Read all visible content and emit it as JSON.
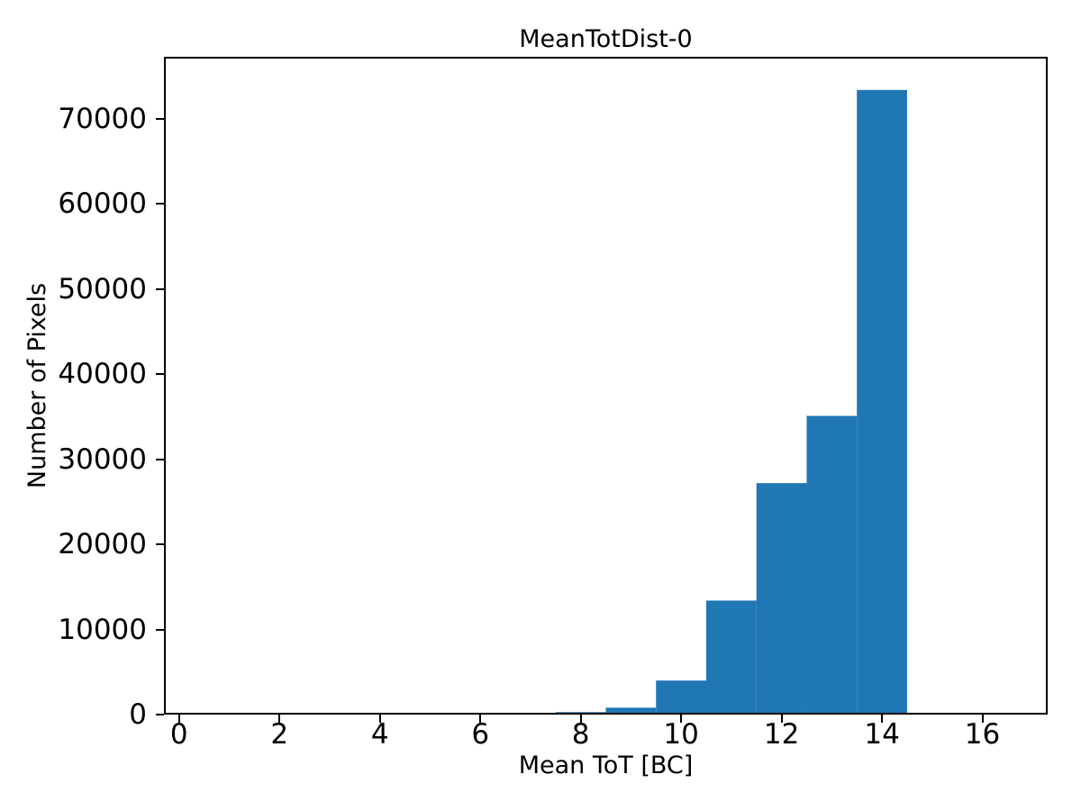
{
  "figure": {
    "background": "#ffffff",
    "text_color": "#000000"
  },
  "chart_data": {
    "type": "bar",
    "subtype": "histogram",
    "title": "MeanTotDist-0",
    "xlabel": "Mean ToT [BC]",
    "ylabel": "Number of Pixels",
    "bar_color": "#1f77b4",
    "axis_color": "#000000",
    "grid": false,
    "legend_position": "none",
    "xlim": [
      -0.3,
      17.3
    ],
    "ylim": [
      0,
      77300
    ],
    "bin_width": 1,
    "bins": [
      {
        "x0": 7.5,
        "x1": 8.5,
        "count": 290
      },
      {
        "x0": 8.5,
        "x1": 9.5,
        "count": 810
      },
      {
        "x0": 9.5,
        "x1": 10.5,
        "count": 4000
      },
      {
        "x0": 10.5,
        "x1": 11.5,
        "count": 13400
      },
      {
        "x0": 11.5,
        "x1": 12.5,
        "count": 27200
      },
      {
        "x0": 12.5,
        "x1": 13.5,
        "count": 35100
      },
      {
        "x0": 13.5,
        "x1": 14.5,
        "count": 73400
      }
    ],
    "xticks": [
      {
        "value": 0,
        "label": "0"
      },
      {
        "value": 2,
        "label": "2"
      },
      {
        "value": 4,
        "label": "4"
      },
      {
        "value": 6,
        "label": "6"
      },
      {
        "value": 8,
        "label": "8"
      },
      {
        "value": 10,
        "label": "10"
      },
      {
        "value": 12,
        "label": "12"
      },
      {
        "value": 14,
        "label": "14"
      },
      {
        "value": 16,
        "label": "16"
      }
    ],
    "yticks": [
      {
        "value": 0,
        "label": "0"
      },
      {
        "value": 10000,
        "label": "10000"
      },
      {
        "value": 20000,
        "label": "20000"
      },
      {
        "value": 30000,
        "label": "30000"
      },
      {
        "value": 40000,
        "label": "40000"
      },
      {
        "value": 50000,
        "label": "50000"
      },
      {
        "value": 60000,
        "label": "60000"
      },
      {
        "value": 70000,
        "label": "70000"
      }
    ]
  }
}
